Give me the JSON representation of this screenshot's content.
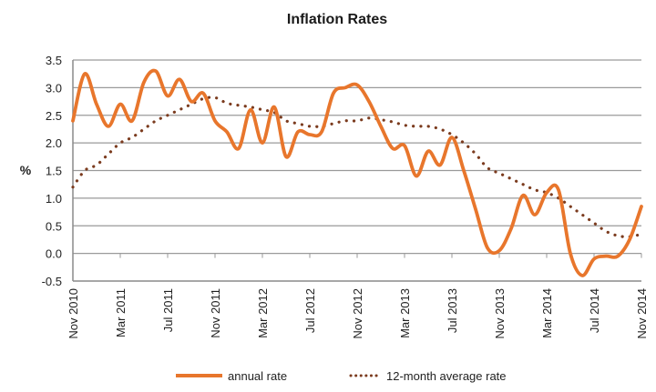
{
  "chart_data": {
    "type": "line",
    "title": "Inflation Rates",
    "xlabel": "",
    "ylabel": "%",
    "ylim": [
      -0.5,
      3.5
    ],
    "yticks": [
      "3.5",
      "3.0",
      "2.5",
      "2.0",
      "1.5",
      "1.0",
      "0.5",
      "0.0",
      "-0.5"
    ],
    "ytick_values": [
      3.5,
      3.0,
      2.5,
      2.0,
      1.5,
      1.0,
      0.5,
      0.0,
      -0.5
    ],
    "xtick_labels": [
      "Nov 2010",
      "Mar 2011",
      "Jul 2011",
      "Nov 2011",
      "Mar 2012",
      "Jul 2012",
      "Nov 2012",
      "Mar 2013",
      "Jul 2013",
      "Nov 2013",
      "Mar 2014",
      "Jul 2014",
      "Nov 2014"
    ],
    "xtick_month_index": [
      0,
      4,
      8,
      12,
      16,
      20,
      24,
      28,
      32,
      36,
      40,
      44,
      48
    ],
    "grid": "horizontal",
    "legend_position": "bottom",
    "x": [
      "Nov 2010",
      "Dec 2010",
      "Jan 2011",
      "Feb 2011",
      "Mar 2011",
      "Apr 2011",
      "May 2011",
      "Jun 2011",
      "Jul 2011",
      "Aug 2011",
      "Sep 2011",
      "Oct 2011",
      "Nov 2011",
      "Dec 2011",
      "Jan 2012",
      "Feb 2012",
      "Mar 2012",
      "Apr 2012",
      "May 2012",
      "Jun 2012",
      "Jul 2012",
      "Aug 2012",
      "Sep 2012",
      "Oct 2012",
      "Nov 2012",
      "Dec 2012",
      "Jan 2013",
      "Feb 2013",
      "Mar 2013",
      "Apr 2013",
      "May 2013",
      "Jun 2013",
      "Jul 2013",
      "Aug 2013",
      "Sep 2013",
      "Oct 2013",
      "Nov 2013",
      "Dec 2013",
      "Jan 2014",
      "Feb 2014",
      "Mar 2014",
      "Apr 2014",
      "May 2014",
      "Jun 2014",
      "Jul 2014",
      "Aug 2014",
      "Sep 2014",
      "Oct 2014",
      "Nov 2014"
    ],
    "series": [
      {
        "name": "annual rate",
        "color": "#e8762c",
        "style": "solid",
        "values": [
          2.4,
          3.25,
          2.7,
          2.3,
          2.7,
          2.4,
          3.1,
          3.3,
          2.85,
          3.15,
          2.75,
          2.9,
          2.4,
          2.2,
          1.9,
          2.6,
          2.0,
          2.65,
          1.75,
          2.2,
          2.15,
          2.2,
          2.9,
          3.0,
          3.05,
          2.75,
          2.3,
          1.9,
          1.95,
          1.4,
          1.85,
          1.6,
          2.1,
          1.5,
          0.8,
          0.1,
          0.05,
          0.45,
          1.05,
          0.7,
          1.1,
          1.15,
          0.0,
          -0.4,
          -0.1,
          -0.05,
          -0.05,
          0.25,
          0.85
        ]
      },
      {
        "name": "12-month average rate",
        "color": "#7b3b1e",
        "style": "dotted",
        "values": [
          1.2,
          1.5,
          1.6,
          1.8,
          2.0,
          2.1,
          2.25,
          2.4,
          2.5,
          2.6,
          2.7,
          2.8,
          2.82,
          2.72,
          2.68,
          2.65,
          2.6,
          2.55,
          2.4,
          2.35,
          2.3,
          2.3,
          2.35,
          2.4,
          2.4,
          2.45,
          2.42,
          2.38,
          2.32,
          2.3,
          2.3,
          2.25,
          2.15,
          2.0,
          1.8,
          1.55,
          1.45,
          1.35,
          1.25,
          1.15,
          1.1,
          1.0,
          0.85,
          0.7,
          0.55,
          0.4,
          0.32,
          0.3,
          0.35
        ]
      }
    ]
  }
}
